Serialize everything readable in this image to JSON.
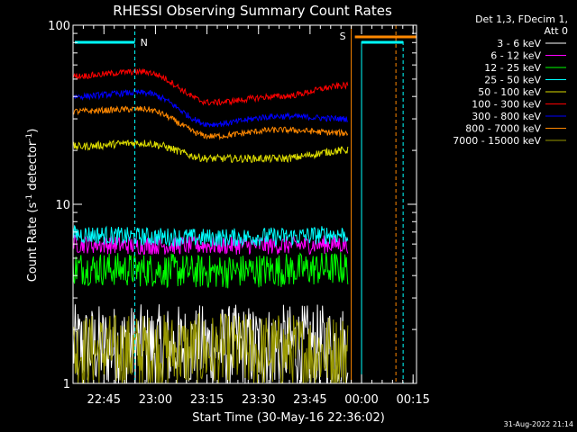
{
  "chart_data": {
    "type": "line",
    "title": "RHESSI Observing Summary Count Rates",
    "xlabel": "Start Time (30-May-16 22:36:02)",
    "ylabel": "Count Rate (s⁻¹ detector⁻¹)",
    "ylabel_main": "Count Rate (s",
    "ylabel_sup1": "-1",
    "ylabel_mid": " detector",
    "ylabel_sup2": "-1",
    "ylabel_end": ")",
    "yscale": "log",
    "ylim": [
      1,
      100
    ],
    "xlim_minutes": [
      0,
      100
    ],
    "y_ticks": [
      {
        "value": 1,
        "label": "1"
      },
      {
        "value": 10,
        "label": "10"
      },
      {
        "value": 100,
        "label": "100"
      }
    ],
    "x_ticks": [
      {
        "minute": 9,
        "label": "22:45"
      },
      {
        "minute": 24,
        "label": "23:00"
      },
      {
        "minute": 39,
        "label": "23:15"
      },
      {
        "minute": 54,
        "label": "23:30"
      },
      {
        "minute": 69,
        "label": "23:45"
      },
      {
        "minute": 84,
        "label": "00:00"
      },
      {
        "minute": 99,
        "label": "00:15"
      }
    ],
    "legend": {
      "header1": "Det 1,3, FDecim 1,",
      "header2": "Att 0",
      "placement": "right"
    },
    "series": [
      {
        "name": "3 - 6 keV",
        "color": "#ffffff",
        "base": [
          1.6,
          1.6,
          1.6,
          1.6,
          1.6
        ],
        "noise": 0.55
      },
      {
        "name": "6 - 12 keV",
        "color": "#ff00ff",
        "base": [
          6.0,
          5.9,
          5.9,
          5.9,
          6.0
        ],
        "noise": 0.12
      },
      {
        "name": "12 - 25 keV",
        "color": "#00ff00",
        "base": [
          4.4,
          4.3,
          4.2,
          4.3,
          4.4
        ],
        "noise": 0.22
      },
      {
        "name": "25 - 50 keV",
        "color": "#00ffff",
        "base": [
          6.8,
          6.6,
          6.5,
          6.6,
          6.8
        ],
        "noise": 0.12
      },
      {
        "name": "50 - 100 keV",
        "color": "#dddd00",
        "base": [
          21,
          22,
          18,
          18,
          20
        ],
        "noise": 0.05
      },
      {
        "name": "100 - 300 keV",
        "color": "#ff0000",
        "base": [
          52,
          55,
          37,
          40,
          46
        ],
        "noise": 0.04
      },
      {
        "name": "300 - 800 keV",
        "color": "#0000ff",
        "base": [
          40,
          42,
          28,
          31,
          30
        ],
        "noise": 0.04
      },
      {
        "name": "800 - 7000 keV",
        "color": "#ff8800",
        "base": [
          33,
          34,
          24,
          26,
          25
        ],
        "noise": 0.04
      },
      {
        "name": "7000 - 15000 keV",
        "color": "#999900",
        "base": [
          1.5,
          1.5,
          1.5,
          1.5,
          1.5
        ],
        "noise": 0.5
      }
    ],
    "data_end_minute": 80,
    "annotations": {
      "night_label": "N",
      "saa_label": "S",
      "night_start_minute": 18,
      "saa_start_minute": 81,
      "saa_end_minute": 94,
      "cyan_marker_minute": 84
    }
  },
  "footer": {
    "date": "31-Aug-2022 21:14"
  }
}
